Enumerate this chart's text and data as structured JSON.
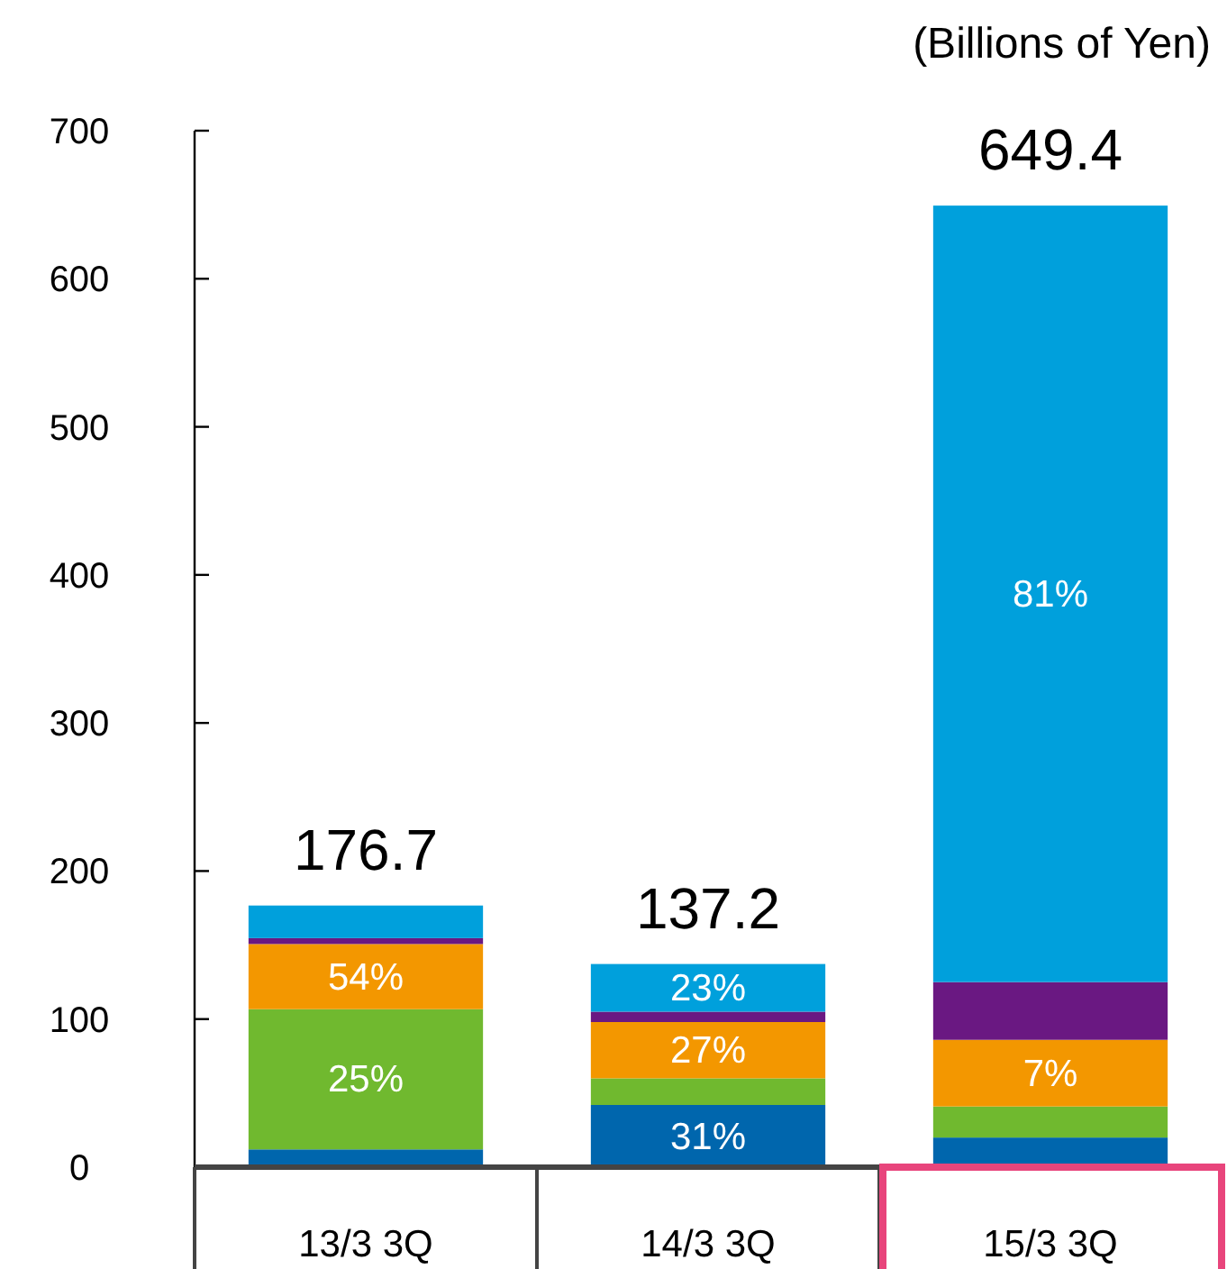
{
  "chart_data": {
    "type": "bar",
    "stacked": true,
    "categories": [
      "13/3  3Q",
      "14/3  3Q",
      "15/3  3Q"
    ],
    "series": [
      {
        "color": "#0066ad",
        "values": [
          12,
          42,
          20
        ]
      },
      {
        "color": "#70b92f",
        "values": [
          94.7,
          18,
          21
        ]
      },
      {
        "color": "#f39700",
        "values": [
          44,
          38,
          45
        ]
      },
      {
        "color": "#6a1882",
        "values": [
          4,
          7,
          39
        ]
      },
      {
        "color": "#00a0dc",
        "values": [
          22,
          32.2,
          524.4
        ]
      }
    ],
    "totals": [
      "176.7",
      "137.2",
      "649.4"
    ],
    "ylim": [
      0,
      700
    ],
    "yticks": [
      0,
      100,
      200,
      300,
      400,
      500,
      600,
      700
    ],
    "annotations": [
      "(Billions of Yen)",
      "25%",
      "54%",
      "31%",
      "27%",
      "23%",
      "7%",
      "81%"
    ]
  }
}
